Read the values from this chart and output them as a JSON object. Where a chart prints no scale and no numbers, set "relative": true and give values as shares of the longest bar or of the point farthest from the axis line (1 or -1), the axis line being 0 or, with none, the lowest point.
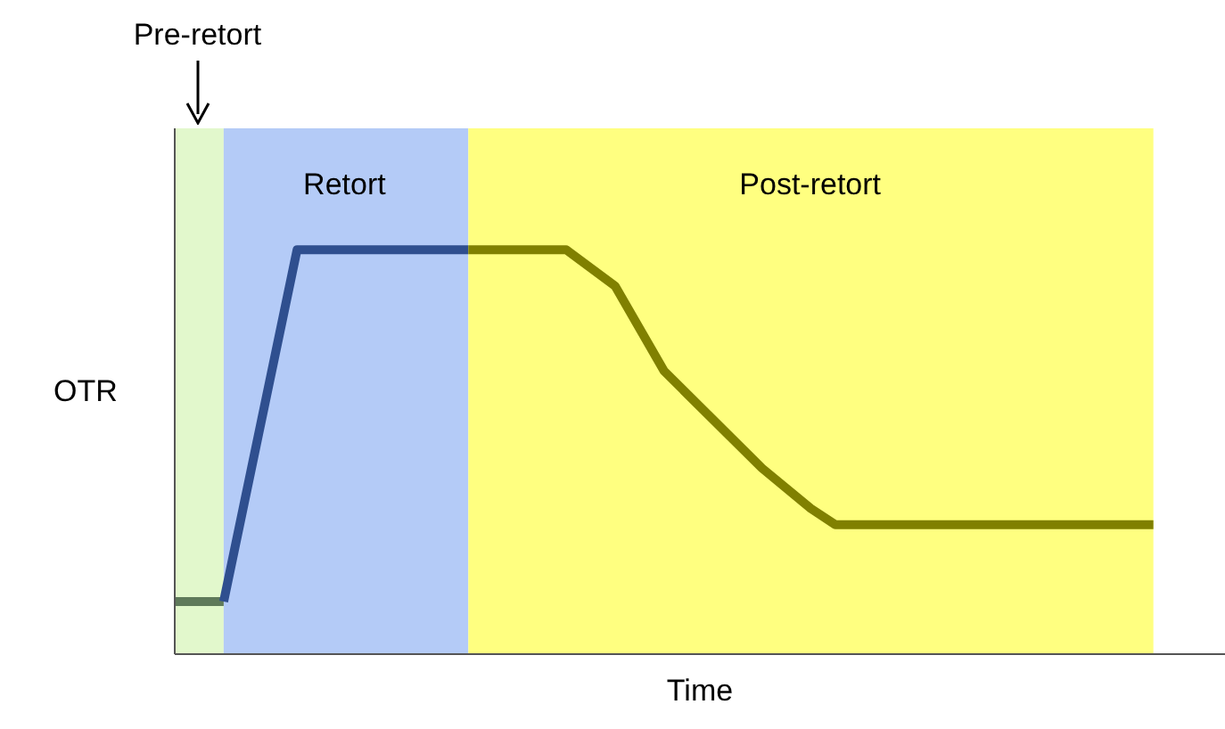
{
  "chart_data": {
    "type": "line",
    "relative": true,
    "xlabel": "Time",
    "ylabel": "OTR",
    "marker": "none",
    "line_style": "solid",
    "categories": [
      null,
      null,
      null,
      null,
      null,
      null,
      null,
      null,
      null,
      null,
      null,
      null,
      null,
      null,
      null,
      null,
      null,
      null,
      null,
      null,
      null,
      null,
      null,
      null,
      null,
      null,
      null,
      null,
      null,
      null,
      null,
      null,
      null,
      null,
      null,
      null,
      null,
      null,
      null,
      null,
      null,
      null,
      null,
      null
    ],
    "series": [
      {
        "values": [
          0.13,
          null,
          0.13,
          null,
          null,
          null,
          null,
          null,
          null,
          null,
          null,
          null,
          null,
          null,
          null,
          null,
          null,
          null,
          null,
          null,
          null,
          null,
          null,
          null,
          null,
          null,
          null,
          null,
          null,
          null,
          null,
          null,
          null,
          null,
          null,
          null,
          null,
          null,
          null,
          null,
          null,
          null,
          null,
          null
        ],
        "color": "#5f7a5a"
      },
      {
        "values": [
          null,
          null,
          0.13,
          null,
          null,
          1,
          null,
          null,
          null,
          null,
          null,
          null,
          1,
          null,
          null,
          null,
          null,
          null,
          null,
          null,
          null,
          null,
          null,
          null,
          null,
          null,
          null,
          null,
          null,
          null,
          null,
          null,
          null,
          null,
          null,
          null,
          null,
          null,
          null,
          null,
          null,
          null,
          null,
          null
        ],
        "color": "#2f4f8f"
      },
      {
        "values": [
          null,
          null,
          null,
          null,
          null,
          null,
          null,
          null,
          null,
          null,
          null,
          null,
          1,
          null,
          null,
          null,
          1,
          null,
          0.91,
          null,
          0.7,
          null,
          null,
          null,
          0.46,
          null,
          0.36,
          0.32,
          null,
          null,
          null,
          null,
          null,
          null,
          null,
          null,
          null,
          null,
          null,
          null,
          0.32,
          null,
          null,
          null
        ],
        "color": "#808000"
      }
    ],
    "annotations": [
      "Pre-retort",
      "Retort",
      "Post-retort"
    ]
  }
}
